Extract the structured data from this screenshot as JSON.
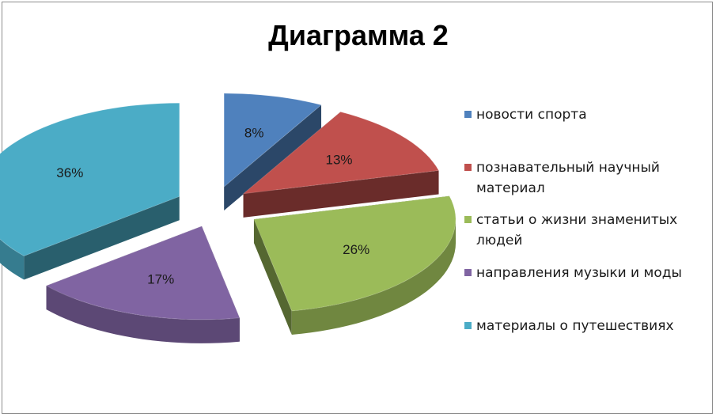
{
  "chart_data": {
    "type": "pie",
    "title": "Диаграмма 2",
    "slices": [
      {
        "label": "новости спорта",
        "value": 8,
        "display": "8%",
        "color": "#4f81bd"
      },
      {
        "label": "познавательный научный материал",
        "value": 13,
        "display": "13%",
        "color": "#c0504d"
      },
      {
        "label": "статьи о жизни знаменитых людей",
        "value": 26,
        "display": "26%",
        "color": "#9bbb59"
      },
      {
        "label": "направления музыки и моды",
        "value": 17,
        "display": "17%",
        "color": "#8064a2"
      },
      {
        "label": "материалы о путешествиях",
        "value": 36,
        "display": "36%",
        "color": "#4bacc6"
      }
    ],
    "legend_placement": "right",
    "style": "3d-exploded"
  },
  "legend": {
    "items": [
      {
        "line1": "новости спорта",
        "line2": "",
        "color": "#4f81bd"
      },
      {
        "line1": "познавательный научный",
        "line2": "материал",
        "color": "#c0504d"
      },
      {
        "line1": "статьи о жизни знаменитых",
        "line2": "людей",
        "color": "#9bbb59"
      },
      {
        "line1": "направления музыки и моды",
        "line2": "",
        "color": "#8064a2"
      },
      {
        "line1": "материалы о путешествиях",
        "line2": "",
        "color": "#4bacc6"
      }
    ]
  }
}
